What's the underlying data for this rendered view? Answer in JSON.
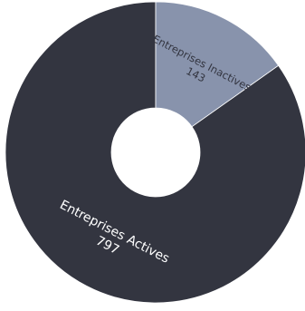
{
  "chart_data": {
    "type": "pie",
    "donut": true,
    "title": "",
    "series": [
      {
        "name": "",
        "slices": [
          {
            "label": "Entreprises Actives",
            "value": 797,
            "value_label": "797",
            "color": "#333540"
          },
          {
            "label": "Entreprises Inactives",
            "value": 143,
            "value_label": "143",
            "color": "#8893ac"
          }
        ]
      }
    ],
    "start": "top",
    "direction": "counterclockwise",
    "label_color": "#ffffff",
    "label_color_light_slice": "#333540",
    "legend": "none"
  }
}
